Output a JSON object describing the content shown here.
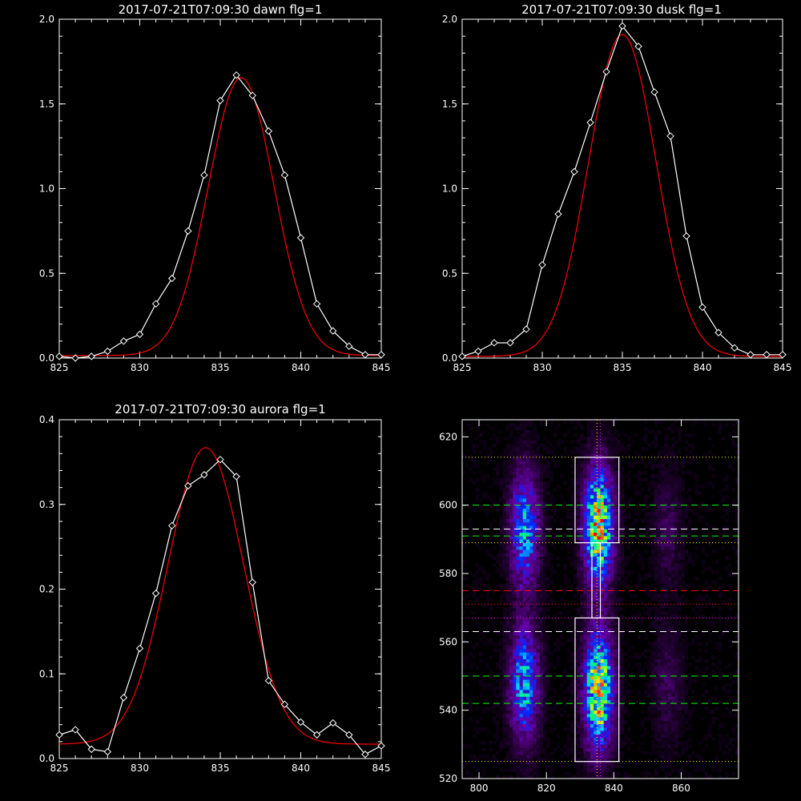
{
  "chart_data": [
    {
      "type": "line",
      "title": "2017-07-21T07:09:30 dawn flg=1",
      "xlabel": "",
      "ylabel": "",
      "xlim": [
        825,
        845
      ],
      "ylim": [
        0,
        2.0
      ],
      "xticks": [
        "825",
        "830",
        "835",
        "840",
        "845"
      ],
      "yticks": [
        "0.0",
        "0.5",
        "1.0",
        "1.5",
        "2.0"
      ],
      "series": [
        {
          "color": "#ffffff",
          "marker": "diamond",
          "x": [
            825,
            826,
            827,
            828,
            829,
            830,
            831,
            832,
            833,
            834,
            835,
            836,
            837,
            838,
            839,
            840,
            841,
            842,
            843,
            844,
            845
          ],
          "y": [
            0.01,
            0.0,
            0.01,
            0.04,
            0.1,
            0.14,
            0.32,
            0.47,
            0.75,
            1.08,
            1.52,
            1.67,
            1.55,
            1.34,
            1.08,
            0.71,
            0.32,
            0.16,
            0.07,
            0.02,
            0.02
          ]
        },
        {
          "color": "#ff0000",
          "fit": "gaussian",
          "amp": 1.64,
          "center": 836.3,
          "sigma": 2.05,
          "offset": 0.015
        }
      ]
    },
    {
      "type": "line",
      "title": "2017-07-21T07:09:30 dusk flg=1",
      "xlabel": "",
      "ylabel": "",
      "xlim": [
        825,
        845
      ],
      "ylim": [
        0,
        2.0
      ],
      "xticks": [
        "825",
        "830",
        "835",
        "840",
        "845"
      ],
      "yticks": [
        "0.0",
        "0.5",
        "1.0",
        "1.5",
        "2.0"
      ],
      "series": [
        {
          "color": "#ffffff",
          "marker": "diamond",
          "x": [
            825,
            826,
            827,
            828,
            829,
            830,
            831,
            832,
            833,
            834,
            835,
            836,
            837,
            838,
            839,
            840,
            841,
            842,
            843,
            844,
            845
          ],
          "y": [
            0.01,
            0.04,
            0.09,
            0.09,
            0.17,
            0.55,
            0.85,
            1.1,
            1.39,
            1.69,
            1.96,
            1.84,
            1.57,
            1.31,
            0.72,
            0.3,
            0.15,
            0.06,
            0.02,
            0.02,
            0.02
          ]
        },
        {
          "color": "#ff0000",
          "fit": "gaussian",
          "amp": 1.9,
          "center": 835.0,
          "sigma": 2.1,
          "offset": 0.01
        }
      ]
    },
    {
      "type": "line",
      "title": "2017-07-21T07:09:30 aurora flg=1",
      "xlabel": "",
      "ylabel": "",
      "xlim": [
        825,
        845
      ],
      "ylim": [
        0,
        0.4
      ],
      "xticks": [
        "825",
        "830",
        "835",
        "840",
        "845"
      ],
      "yticks": [
        "0.0",
        "0.1",
        "0.2",
        "0.3",
        "0.4"
      ],
      "series": [
        {
          "color": "#ffffff",
          "marker": "diamond",
          "x": [
            825,
            826,
            827,
            828,
            829,
            830,
            831,
            832,
            833,
            834,
            835,
            836,
            837,
            838,
            839,
            840,
            841,
            842,
            843,
            844,
            845
          ],
          "y": [
            0.028,
            0.034,
            0.011,
            0.008,
            0.072,
            0.13,
            0.195,
            0.275,
            0.322,
            0.335,
            0.353,
            0.333,
            0.208,
            0.092,
            0.064,
            0.043,
            0.028,
            0.042,
            0.028,
            0.005,
            0.015
          ]
        },
        {
          "color": "#ff0000",
          "fit": "gaussian",
          "amp": 0.35,
          "center": 834.1,
          "sigma": 2.35,
          "offset": 0.017
        }
      ]
    },
    {
      "type": "heatmap",
      "title": "",
      "xlabel": "",
      "ylabel": "",
      "xlim": [
        795,
        877
      ],
      "ylim": [
        520,
        625
      ],
      "xticks": [
        "800",
        "820",
        "840",
        "860"
      ],
      "yticks": [
        "520",
        "540",
        "560",
        "580",
        "600",
        "620"
      ],
      "colormap": "rainbow (black-purple-blue-cyan-green-yellow-red)",
      "emission_blobs": [
        {
          "x": 835.5,
          "y": 594,
          "intensity": 1.0
        },
        {
          "x": 835.5,
          "y": 546,
          "intensity": 1.0
        },
        {
          "x": 813.5,
          "y": 593,
          "intensity": 0.6
        },
        {
          "x": 813.5,
          "y": 548,
          "intensity": 0.6
        },
        {
          "x": 856,
          "y": 593,
          "intensity": 0.12
        },
        {
          "x": 856,
          "y": 548,
          "intensity": 0.12
        }
      ],
      "boxes": [
        {
          "x": [
            828.5,
            841.5
          ],
          "y": [
            589,
            614
          ],
          "color": "#ffffff"
        },
        {
          "x": [
            828.5,
            841.5
          ],
          "y": [
            525,
            567
          ],
          "color": "#ffffff"
        },
        {
          "x": [
            833.5,
            836.0
          ],
          "y": [
            567,
            589
          ],
          "color": "#ffffff"
        }
      ],
      "hlines": [
        {
          "y": 614,
          "color": "#ffff00",
          "style": "dotted"
        },
        {
          "y": 600,
          "color": "#00ff00",
          "style": "dashed"
        },
        {
          "y": 593,
          "color": "#ffffff",
          "style": "dashed"
        },
        {
          "y": 591,
          "color": "#00ff00",
          "style": "dashed"
        },
        {
          "y": 589,
          "color": "#ffff00",
          "style": "dotted"
        },
        {
          "y": 575,
          "color": "#ff0000",
          "style": "dashed"
        },
        {
          "y": 571,
          "color": "#ff0000",
          "style": "dotted"
        },
        {
          "y": 567,
          "color": "#ff00ff",
          "style": "dotted"
        },
        {
          "y": 563,
          "color": "#ffffff",
          "style": "dashed"
        },
        {
          "y": 550,
          "color": "#00ff00",
          "style": "dashed"
        },
        {
          "y": 542,
          "color": "#00ff00",
          "style": "dashed"
        },
        {
          "y": 525,
          "color": "#ffff00",
          "style": "dotted"
        }
      ],
      "vlines": [
        {
          "x": 835.0,
          "color": "#ffff00",
          "style": "dotted"
        },
        {
          "x": 836.0,
          "color": "#ff00ff",
          "style": "dotted"
        }
      ]
    }
  ]
}
